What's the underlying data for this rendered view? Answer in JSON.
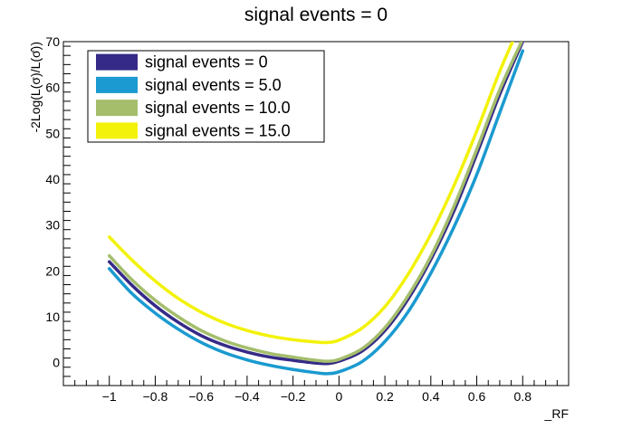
{
  "chart_data": {
    "type": "line",
    "title": "signal events = 0",
    "xlabel": "_RF",
    "ylabel": "-2Log(L(σ)/L(σ̂))",
    "xlim": [
      -1.2,
      1.0
    ],
    "ylim": [
      -5,
      70
    ],
    "x_ticks": [
      -1,
      -0.8,
      -0.6,
      -0.4,
      -0.2,
      0,
      0.2,
      0.4,
      0.6,
      0.8
    ],
    "x_tick_labels": [
      "−1",
      "−0.8",
      "−0.6",
      "−0.4",
      "−0.2",
      "0",
      "0.2",
      "0.4",
      "0.6",
      "0.8"
    ],
    "y_ticks": [
      0,
      10,
      20,
      30,
      40,
      50,
      60,
      70
    ],
    "y_tick_labels": [
      "0",
      "10",
      "20",
      "30",
      "40",
      "50",
      "60",
      "70"
    ],
    "grid": false,
    "legend_position": "top-left",
    "series": [
      {
        "name": "signal events = 0",
        "color": "#352a87",
        "x": [
          -1.0,
          -0.9,
          -0.8,
          -0.7,
          -0.6,
          -0.5,
          -0.4,
          -0.3,
          -0.2,
          -0.1,
          -0.05,
          0.0,
          0.1,
          0.2,
          0.3,
          0.4,
          0.5,
          0.6,
          0.7,
          0.8
        ],
        "y": [
          22.0,
          16.8,
          12.4,
          8.8,
          5.9,
          3.8,
          2.3,
          1.2,
          0.5,
          -0.1,
          -0.2,
          0.3,
          2.5,
          7.0,
          13.8,
          22.5,
          33.0,
          45.5,
          58.5,
          70.0
        ]
      },
      {
        "name": "signal events = 5.0",
        "color": "#1a9ad0",
        "x": [
          -1.0,
          -0.9,
          -0.8,
          -0.7,
          -0.6,
          -0.5,
          -0.4,
          -0.3,
          -0.2,
          -0.1,
          -0.05,
          0.0,
          0.1,
          0.2,
          0.3,
          0.4,
          0.5,
          0.6,
          0.7,
          0.8
        ],
        "y": [
          20.5,
          15.0,
          10.8,
          7.3,
          4.4,
          2.2,
          0.6,
          -0.6,
          -1.5,
          -2.2,
          -2.4,
          -2.0,
          0.2,
          4.6,
          11.0,
          19.5,
          29.5,
          41.0,
          54.5,
          68.0
        ]
      },
      {
        "name": "signal events = 10.0",
        "color": "#a4be6c",
        "x": [
          -1.0,
          -0.9,
          -0.8,
          -0.7,
          -0.6,
          -0.5,
          -0.4,
          -0.3,
          -0.2,
          -0.1,
          -0.05,
          0.0,
          0.1,
          0.2,
          0.3,
          0.4,
          0.5,
          0.6,
          0.7,
          0.8
        ],
        "y": [
          23.3,
          18.0,
          13.6,
          10.0,
          7.0,
          4.8,
          3.2,
          2.0,
          1.2,
          0.5,
          0.3,
          0.7,
          3.0,
          7.6,
          14.5,
          23.2,
          34.0,
          46.5,
          59.5,
          70.5
        ]
      },
      {
        "name": "signal events = 15.0",
        "color": "#f2f20a",
        "x": [
          -1.0,
          -0.9,
          -0.8,
          -0.7,
          -0.6,
          -0.5,
          -0.4,
          -0.3,
          -0.2,
          -0.1,
          -0.05,
          0.0,
          0.1,
          0.2,
          0.3,
          0.4,
          0.5,
          0.6,
          0.7,
          0.8
        ],
        "y": [
          27.4,
          22.3,
          17.8,
          14.0,
          11.0,
          8.7,
          7.0,
          5.8,
          5.0,
          4.5,
          4.4,
          4.9,
          7.5,
          12.2,
          19.2,
          28.0,
          38.5,
          50.5,
          63.5,
          75.0
        ]
      }
    ]
  }
}
